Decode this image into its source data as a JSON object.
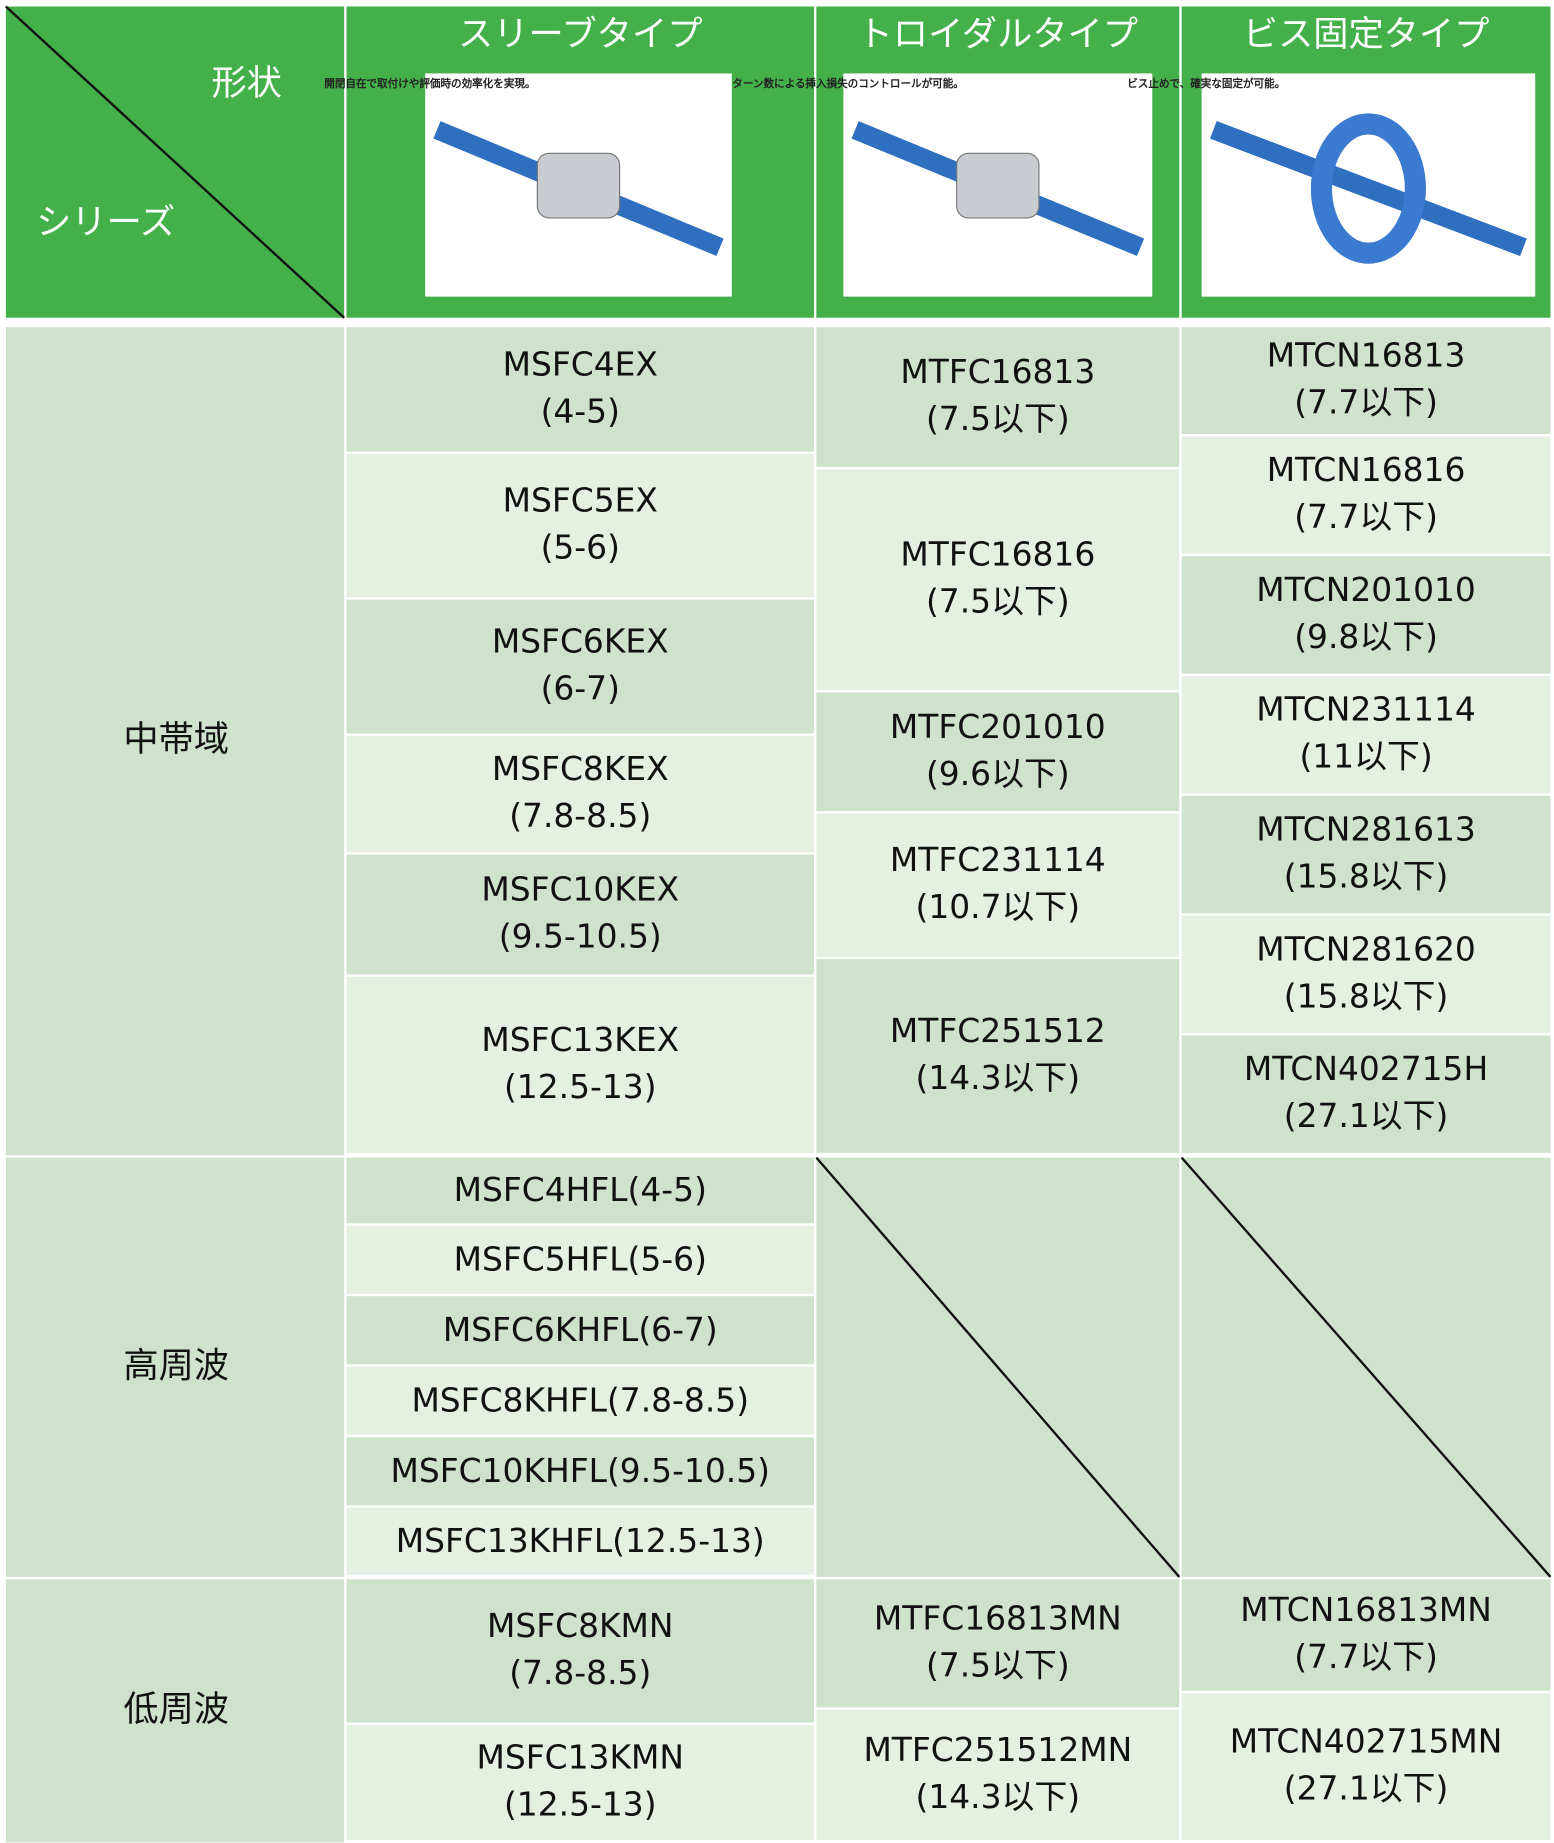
{
  "header": {
    "corner_top": "形状",
    "corner_bottom": "シリーズ",
    "columns": [
      {
        "title": "スリーブタイプ",
        "caption": "開閉自在で取付けや評価時の効率化を実現。"
      },
      {
        "title": "トロイダルタイプ",
        "caption": "ターン数による挿入損失のコントロールが可能。"
      },
      {
        "title": "ビス固定タイプ",
        "caption": "ビス止めで、確実な固定が可能。"
      }
    ]
  },
  "groups": [
    {
      "label": "中帯域",
      "cells": [
        [
          {
            "name": "MSFC4EX",
            "range": "(4-5)"
          },
          {
            "name": "MSFC5EX",
            "range": "(5-6)"
          },
          {
            "name": "MSFC6KEX",
            "range": "(6-7)"
          },
          {
            "name": "MSFC8KEX",
            "range": "(7.8-8.5)"
          },
          {
            "name": "MSFC10KEX",
            "range": "(9.5-10.5)"
          },
          {
            "name": "MSFC13KEX",
            "range": "(12.5-13)"
          }
        ],
        [
          {
            "name": "MTFC16813",
            "range": "(7.5以下)"
          },
          {
            "name": "MTFC16816",
            "range": "(7.5以下)"
          },
          {
            "name": "MTFC201010",
            "range": "(9.6以下)"
          },
          {
            "name": "MTFC231114",
            "range": "(10.7以下)"
          },
          {
            "name": "MTFC251512",
            "range": "(14.3以下)"
          }
        ],
        [
          {
            "name": "MTCN16813",
            "range": "(7.7以下)"
          },
          {
            "name": "MTCN16816",
            "range": "(7.7以下)"
          },
          {
            "name": "MTCN201010",
            "range": "(9.8以下)"
          },
          {
            "name": "MTCN231114",
            "range": "(11以下)"
          },
          {
            "name": "MTCN281613",
            "range": "(15.8以下)"
          },
          {
            "name": "MTCN281620",
            "range": "(15.8以下)"
          },
          {
            "name": "MTCN402715H",
            "range": "(27.1以下)"
          }
        ]
      ]
    },
    {
      "label": "高周波",
      "cells": [
        [
          {
            "name": "MSFC4HFL(4-5)"
          },
          {
            "name": "MSFC5HFL(5-6)"
          },
          {
            "name": "MSFC6KHFL(6-7)"
          },
          {
            "name": "MSFC8KHFL(7.8-8.5)"
          },
          {
            "name": "MSFC10KHFL(9.5-10.5)"
          },
          {
            "name": "MSFC13KHFL(12.5-13)"
          }
        ],
        [],
        []
      ]
    },
    {
      "label": "低周波",
      "cells": [
        [
          {
            "name": "MSFC8KMN",
            "range": "(7.8-8.5)"
          },
          {
            "name": "MSFC13KMN",
            "range": "(12.5-13)"
          }
        ],
        [
          {
            "name": "MTFC16813MN",
            "range": "(7.5以下)"
          },
          {
            "name": "MTFC251512MN",
            "range": "(14.3以下)"
          }
        ],
        [
          {
            "name": "MTCN16813MN",
            "range": "(7.7以下)"
          },
          {
            "name": "MTCN402715MN",
            "range": "(27.1以下)"
          }
        ]
      ]
    }
  ]
}
